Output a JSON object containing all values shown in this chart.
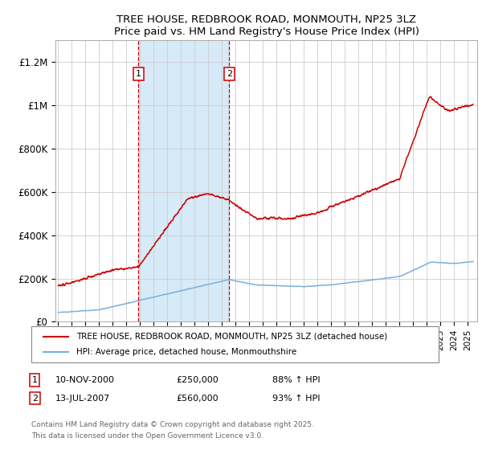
{
  "title": "TREE HOUSE, REDBROOK ROAD, MONMOUTH, NP25 3LZ",
  "subtitle": "Price paid vs. HM Land Registry's House Price Index (HPI)",
  "ylabel_ticks": [
    "£0",
    "£200K",
    "£400K",
    "£600K",
    "£800K",
    "£1M",
    "£1.2M"
  ],
  "ytick_values": [
    0,
    200000,
    400000,
    600000,
    800000,
    1000000,
    1200000
  ],
  "ylim": [
    0,
    1300000
  ],
  "xlim_start": 1994.8,
  "xlim_end": 2025.7,
  "sale1_date": "10-NOV-2000",
  "sale1_price": "£250,000",
  "sale1_pct": "88% ↑ HPI",
  "sale1_x": 2000.87,
  "sale2_date": "13-JUL-2007",
  "sale2_price": "£560,000",
  "sale2_pct": "93% ↑ HPI",
  "sale2_x": 2007.54,
  "legend1": "TREE HOUSE, REDBROOK ROAD, MONMOUTH, NP25 3LZ (detached house)",
  "legend2": "HPI: Average price, detached house, Monmouthshire",
  "footnote1": "Contains HM Land Registry data © Crown copyright and database right 2025.",
  "footnote2": "This data is licensed under the Open Government Licence v3.0.",
  "line1_color": "#cc0000",
  "line2_color": "#7aaedb",
  "shaded_color": "#d6eaf8",
  "vline_color": "#cc0000",
  "box_color": "#cc0000",
  "background_color": "#ffffff",
  "grid_color": "#cccccc"
}
